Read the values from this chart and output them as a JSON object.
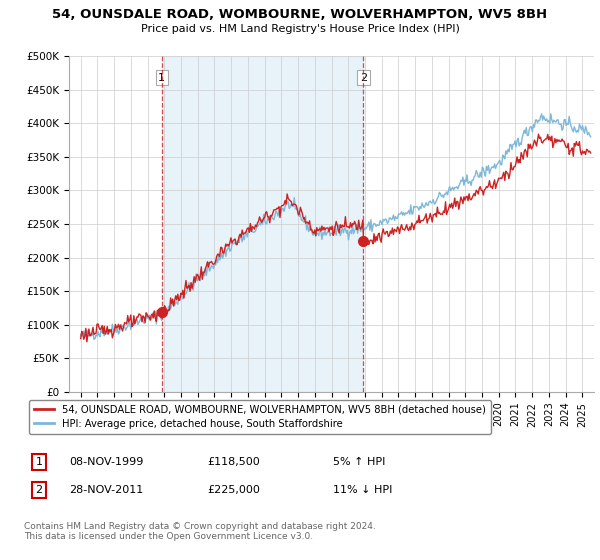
{
  "title": "54, OUNSDALE ROAD, WOMBOURNE, WOLVERHAMPTON, WV5 8BH",
  "subtitle": "Price paid vs. HM Land Registry's House Price Index (HPI)",
  "ylabel_ticks": [
    "£0",
    "£50K",
    "£100K",
    "£150K",
    "£200K",
    "£250K",
    "£300K",
    "£350K",
    "£400K",
    "£450K",
    "£500K"
  ],
  "ytick_values": [
    0,
    50000,
    100000,
    150000,
    200000,
    250000,
    300000,
    350000,
    400000,
    450000,
    500000
  ],
  "ylim": [
    0,
    500000
  ],
  "hpi_color": "#7eb8d9",
  "hpi_fill_color": "#daeaf5",
  "price_color": "#cc2222",
  "dashed_color": "#cc2222",
  "background_color": "#ffffff",
  "grid_color": "#cccccc",
  "legend_label_price": "54, OUNSDALE ROAD, WOMBOURNE, WOLVERHAMPTON, WV5 8BH (detached house)",
  "legend_label_hpi": "HPI: Average price, detached house, South Staffordshire",
  "sale1_date": "08-NOV-1999",
  "sale1_price": "£118,500",
  "sale1_hpi": "5% ↑ HPI",
  "sale2_date": "28-NOV-2011",
  "sale2_price": "£225,000",
  "sale2_hpi": "11% ↓ HPI",
  "footer": "Contains HM Land Registry data © Crown copyright and database right 2024.\nThis data is licensed under the Open Government Licence v3.0.",
  "sale1_year": 1999.85,
  "sale1_value": 118500,
  "sale2_year": 2011.9,
  "sale2_value": 225000
}
